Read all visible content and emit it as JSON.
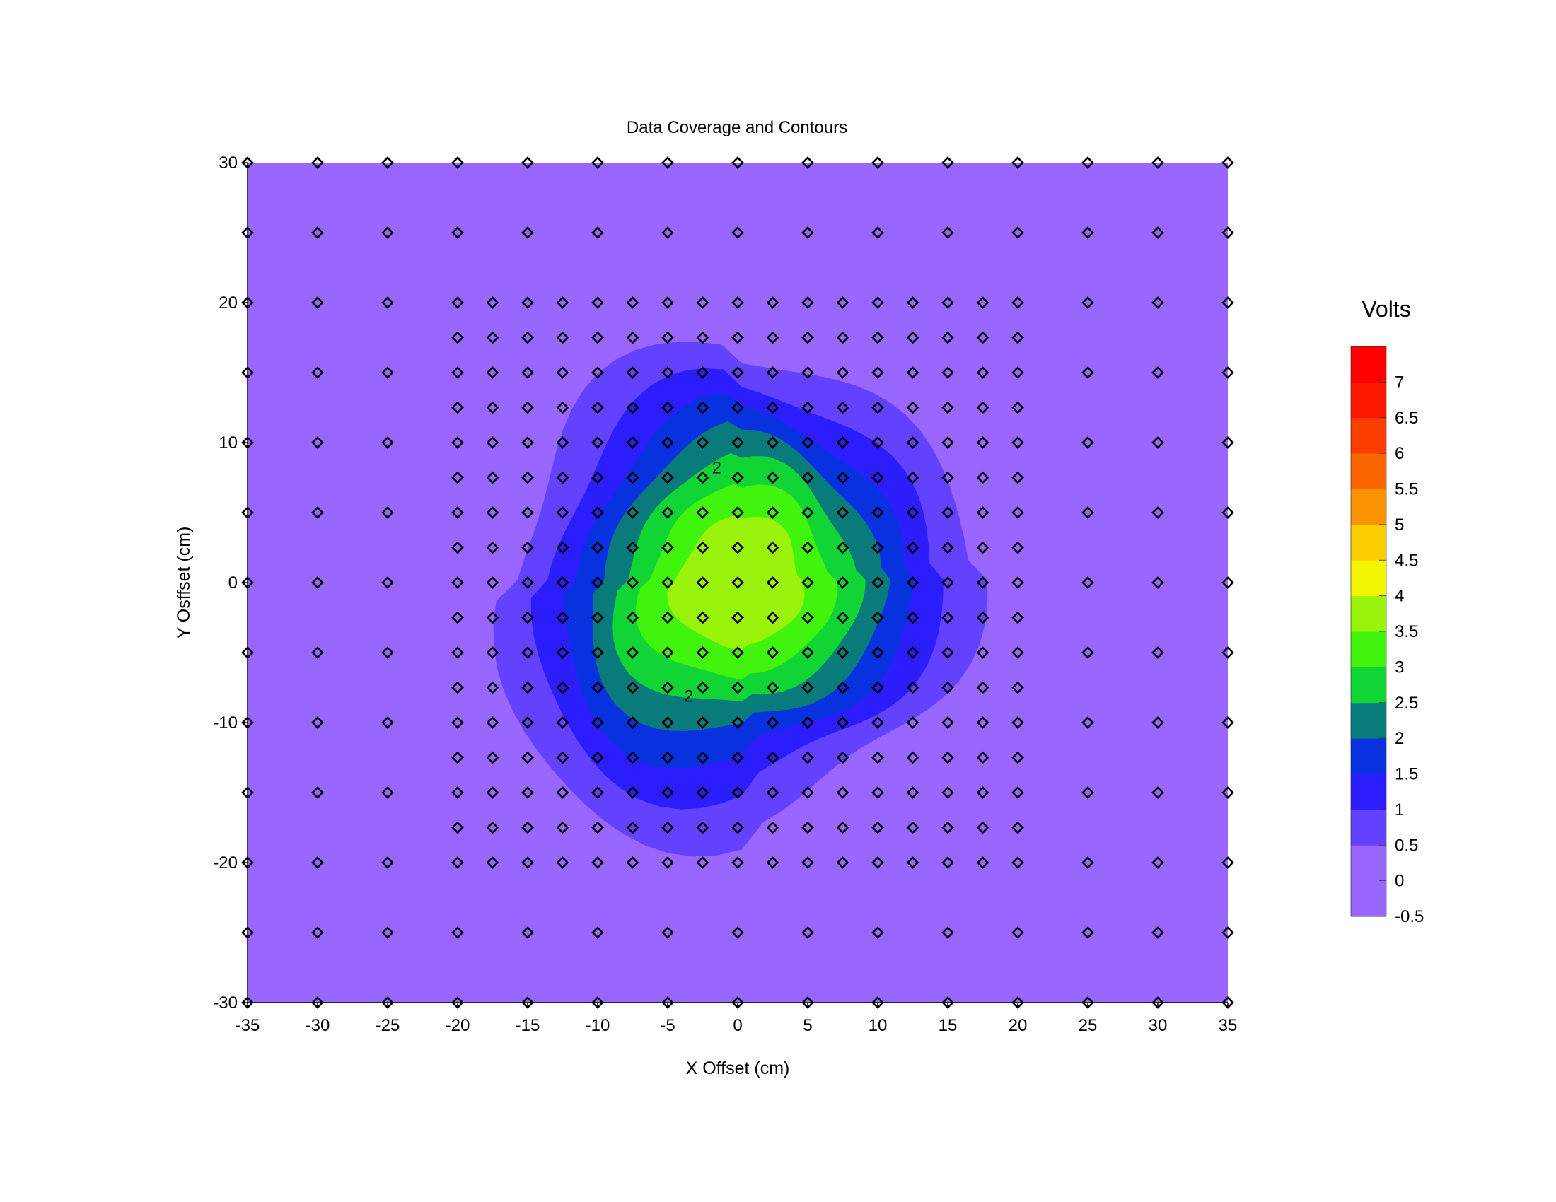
{
  "chart_data": {
    "type": "heatmap",
    "subtype": "filled-contour with data-coverage markers",
    "title": "Data Coverage and Contours",
    "xlabel": "X Offset (cm)",
    "ylabel": "Y Osffset (cm)",
    "xlim": [
      -35,
      35
    ],
    "ylim": [
      -30,
      30
    ],
    "x_ticks": [
      -35,
      -30,
      -25,
      -20,
      -15,
      -10,
      -5,
      0,
      5,
      10,
      15,
      20,
      25,
      30,
      35
    ],
    "y_ticks": [
      30,
      20,
      10,
      0,
      -10,
      -20,
      -30
    ],
    "x_tick_labels": [
      "-35",
      "-30",
      "-25",
      "-20",
      "-15",
      "-10",
      "-5",
      "0",
      "5",
      "10",
      "15",
      "20",
      "25",
      "30",
      "35"
    ],
    "y_tick_labels": [
      "30",
      "20",
      "10",
      "0",
      "-10",
      "-20",
      "-30"
    ],
    "grid": false,
    "legend": {
      "title": "Volts",
      "placement": "right",
      "labels": [
        "7",
        "6.5",
        "6",
        "5.5",
        "5",
        "4.5",
        "4",
        "3.5",
        "3",
        "2.5",
        "2",
        "1.5",
        "1",
        "0.5",
        "0",
        "-0.5"
      ],
      "levels": [
        -0.5,
        0,
        0.5,
        1,
        1.5,
        2,
        2.5,
        3,
        3.5,
        4,
        4.5,
        5,
        5.5,
        6,
        6.5,
        7,
        7.5
      ],
      "colors": [
        "#9966ff",
        "#9966ff",
        "#6242ff",
        "#2c1dfd",
        "#0831e0",
        "#097b7b",
        "#11d435",
        "#40f40e",
        "#9af30a",
        "#f2f700",
        "#fcce00",
        "#fb9400",
        "#fb6600",
        "#fb3e00",
        "#ff1800",
        "#ff0000"
      ]
    },
    "contour_labels": [
      {
        "text": "2",
        "x": -1.5,
        "y": 7.8
      },
      {
        "text": "2",
        "x": -3.5,
        "y": -8.5
      }
    ],
    "field": {
      "units": "Volts",
      "peak_value": 4.0,
      "peak_at": [
        0,
        0
      ],
      "background_value": -0.3
    },
    "coverage_points": {
      "coarse_x": [
        -35,
        -30,
        -25,
        -20,
        -15,
        -10,
        -5,
        0,
        5,
        10,
        15,
        20,
        25,
        30,
        35
      ],
      "coarse_y": [
        30,
        25,
        -25,
        -30
      ],
      "outer_x": [
        -35,
        -30,
        -25,
        25,
        30,
        35
      ],
      "outer_y": [
        20,
        15,
        10,
        5,
        0,
        -5,
        -10,
        -15,
        -20
      ],
      "dense_x": [
        -20,
        -17.5,
        -15,
        -12.5,
        -10,
        -7.5,
        -5,
        -2.5,
        0,
        2.5,
        5,
        7.5,
        10,
        12.5,
        15,
        17.5,
        20
      ],
      "dense_y": [
        20,
        17.5,
        15,
        12.5,
        10,
        7.5,
        5,
        2.5,
        0,
        -2.5,
        -5,
        -7.5,
        -10,
        -12.5,
        -15,
        -17.5,
        -20
      ]
    }
  }
}
